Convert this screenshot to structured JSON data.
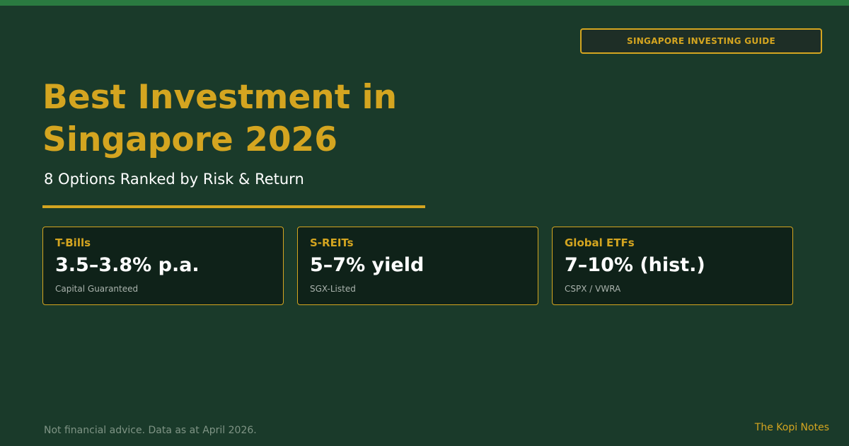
{
  "badge": {
    "label": "SINGAPORE INVESTING GUIDE"
  },
  "heading": {
    "title_line_1": "Best Investment in",
    "title_line_2": "Singapore 2026",
    "subtitle": "8 Options Ranked by Risk & Return"
  },
  "cards": [
    {
      "label": "T-Bills",
      "value": "3.5–3.8% p.a.",
      "note": "Capital Guaranteed"
    },
    {
      "label": "S-REITs",
      "value": "5–7% yield",
      "note": "SGX-Listed"
    },
    {
      "label": "Global ETFs",
      "value": "7–10% (hist.)",
      "note": "CSPX / VWRA"
    }
  ],
  "footer": {
    "disclaimer": "Not financial advice. Data as at April 2026.",
    "brand": "The Kopi Notes"
  },
  "colors": {
    "background": "#1a3a2a",
    "top_bar": "#2a7a40",
    "accent": "#d4a520",
    "card_background": "#0f2219",
    "text_primary": "#ffffff",
    "text_muted": "#7f9485"
  }
}
